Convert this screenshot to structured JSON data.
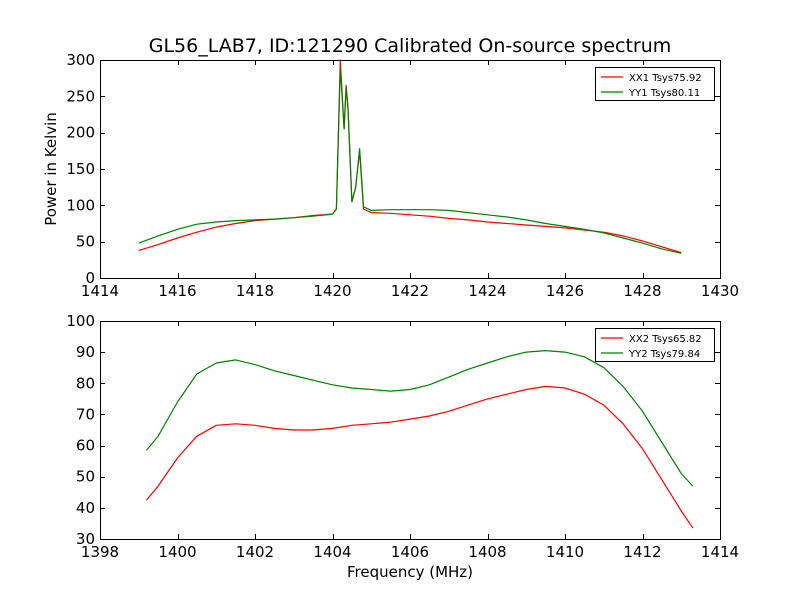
{
  "title": "GL56_LAB7, ID:121290 Calibrated On-source spectrum",
  "chart_data": [
    {
      "type": "line",
      "ylabel": "Power in Kelvin",
      "xlabel": "",
      "xlim": [
        1414,
        1430
      ],
      "ylim": [
        0,
        300
      ],
      "xticks": [
        1414,
        1416,
        1418,
        1420,
        1422,
        1424,
        1426,
        1428,
        1430
      ],
      "yticks": [
        0,
        50,
        100,
        150,
        200,
        250,
        300
      ],
      "legend_position": "top-right",
      "series": [
        {
          "name": "XX1 Tsys75.92",
          "color": "#ff0000",
          "points": [
            [
              1415.0,
              38
            ],
            [
              1415.5,
              46
            ],
            [
              1416.0,
              55
            ],
            [
              1416.5,
              63
            ],
            [
              1417.0,
              70
            ],
            [
              1417.5,
              75
            ],
            [
              1418.0,
              79
            ],
            [
              1418.5,
              81
            ],
            [
              1419.0,
              83
            ],
            [
              1419.5,
              86
            ],
            [
              1420.0,
              88
            ],
            [
              1420.1,
              95
            ],
            [
              1420.2,
              300
            ],
            [
              1420.3,
              205
            ],
            [
              1420.35,
              265
            ],
            [
              1420.4,
              235
            ],
            [
              1420.5,
              105
            ],
            [
              1420.6,
              125
            ],
            [
              1420.7,
              175
            ],
            [
              1420.8,
              95
            ],
            [
              1421.0,
              90
            ],
            [
              1421.5,
              89
            ],
            [
              1422.0,
              87
            ],
            [
              1422.5,
              85
            ],
            [
              1423.0,
              82
            ],
            [
              1423.5,
              80
            ],
            [
              1424.0,
              77
            ],
            [
              1424.5,
              75
            ],
            [
              1425.0,
              73
            ],
            [
              1425.5,
              71
            ],
            [
              1426.0,
              69
            ],
            [
              1426.5,
              66
            ],
            [
              1427.0,
              63
            ],
            [
              1427.5,
              58
            ],
            [
              1428.0,
              51
            ],
            [
              1428.5,
              43
            ],
            [
              1429.0,
              35
            ]
          ]
        },
        {
          "name": "YY1 Tsys80.11",
          "color": "#008000",
          "points": [
            [
              1415.0,
              48
            ],
            [
              1415.5,
              58
            ],
            [
              1416.0,
              67
            ],
            [
              1416.5,
              74
            ],
            [
              1417.0,
              77
            ],
            [
              1417.5,
              79
            ],
            [
              1418.0,
              80
            ],
            [
              1418.5,
              81
            ],
            [
              1419.0,
              83
            ],
            [
              1419.5,
              85
            ],
            [
              1420.0,
              88
            ],
            [
              1420.1,
              95
            ],
            [
              1420.2,
              290
            ],
            [
              1420.3,
              205
            ],
            [
              1420.35,
              262
            ],
            [
              1420.4,
              232
            ],
            [
              1420.5,
              105
            ],
            [
              1420.6,
              125
            ],
            [
              1420.7,
              178
            ],
            [
              1420.8,
              98
            ],
            [
              1421.0,
              93
            ],
            [
              1421.5,
              94
            ],
            [
              1422.0,
              94
            ],
            [
              1422.5,
              94
            ],
            [
              1423.0,
              93
            ],
            [
              1423.5,
              90
            ],
            [
              1424.0,
              87
            ],
            [
              1424.5,
              84
            ],
            [
              1425.0,
              80
            ],
            [
              1425.5,
              75
            ],
            [
              1426.0,
              71
            ],
            [
              1426.5,
              67
            ],
            [
              1427.0,
              62
            ],
            [
              1427.5,
              55
            ],
            [
              1428.0,
              48
            ],
            [
              1428.5,
              40
            ],
            [
              1429.0,
              34
            ]
          ]
        }
      ]
    },
    {
      "type": "line",
      "ylabel": "",
      "xlabel": "Frequency (MHz)",
      "xlim": [
        1398,
        1414
      ],
      "ylim": [
        30,
        100
      ],
      "xticks": [
        1398,
        1400,
        1402,
        1404,
        1406,
        1408,
        1410,
        1412,
        1414
      ],
      "yticks": [
        30,
        40,
        50,
        60,
        70,
        80,
        90,
        100
      ],
      "legend_position": "top-right",
      "series": [
        {
          "name": "XX2 Tsys65.82",
          "color": "#ff0000",
          "points": [
            [
              1399.2,
              42.5
            ],
            [
              1399.5,
              47
            ],
            [
              1400.0,
              56
            ],
            [
              1400.5,
              63
            ],
            [
              1401.0,
              66.5
            ],
            [
              1401.5,
              67
            ],
            [
              1402.0,
              66.5
            ],
            [
              1402.5,
              65.5
            ],
            [
              1403.0,
              65
            ],
            [
              1403.5,
              65
            ],
            [
              1404.0,
              65.5
            ],
            [
              1404.5,
              66.5
            ],
            [
              1405.0,
              67
            ],
            [
              1405.5,
              67.5
            ],
            [
              1406.0,
              68.5
            ],
            [
              1406.5,
              69.5
            ],
            [
              1407.0,
              71
            ],
            [
              1407.5,
              73
            ],
            [
              1408.0,
              75
            ],
            [
              1408.5,
              76.5
            ],
            [
              1409.0,
              78
            ],
            [
              1409.5,
              79
            ],
            [
              1410.0,
              78.5
            ],
            [
              1410.5,
              76.5
            ],
            [
              1411.0,
              73
            ],
            [
              1411.5,
              67
            ],
            [
              1412.0,
              59
            ],
            [
              1412.5,
              49
            ],
            [
              1413.0,
              39
            ],
            [
              1413.3,
              33.5
            ]
          ]
        },
        {
          "name": "YY2 Tsys79.84",
          "color": "#008000",
          "points": [
            [
              1399.2,
              58.5
            ],
            [
              1399.5,
              63
            ],
            [
              1400.0,
              74
            ],
            [
              1400.5,
              83
            ],
            [
              1401.0,
              86.5
            ],
            [
              1401.5,
              87.5
            ],
            [
              1402.0,
              86
            ],
            [
              1402.5,
              84
            ],
            [
              1403.0,
              82.5
            ],
            [
              1403.5,
              81
            ],
            [
              1404.0,
              79.5
            ],
            [
              1404.5,
              78.5
            ],
            [
              1405.0,
              78
            ],
            [
              1405.5,
              77.5
            ],
            [
              1406.0,
              78
            ],
            [
              1406.5,
              79.5
            ],
            [
              1407.0,
              82
            ],
            [
              1407.5,
              84.5
            ],
            [
              1408.0,
              86.5
            ],
            [
              1408.5,
              88.5
            ],
            [
              1409.0,
              90
            ],
            [
              1409.5,
              90.5
            ],
            [
              1410.0,
              90
            ],
            [
              1410.5,
              88.5
            ],
            [
              1411.0,
              85
            ],
            [
              1411.5,
              79
            ],
            [
              1412.0,
              71
            ],
            [
              1412.5,
              61
            ],
            [
              1413.0,
              51
            ],
            [
              1413.3,
              47
            ]
          ]
        }
      ]
    }
  ]
}
